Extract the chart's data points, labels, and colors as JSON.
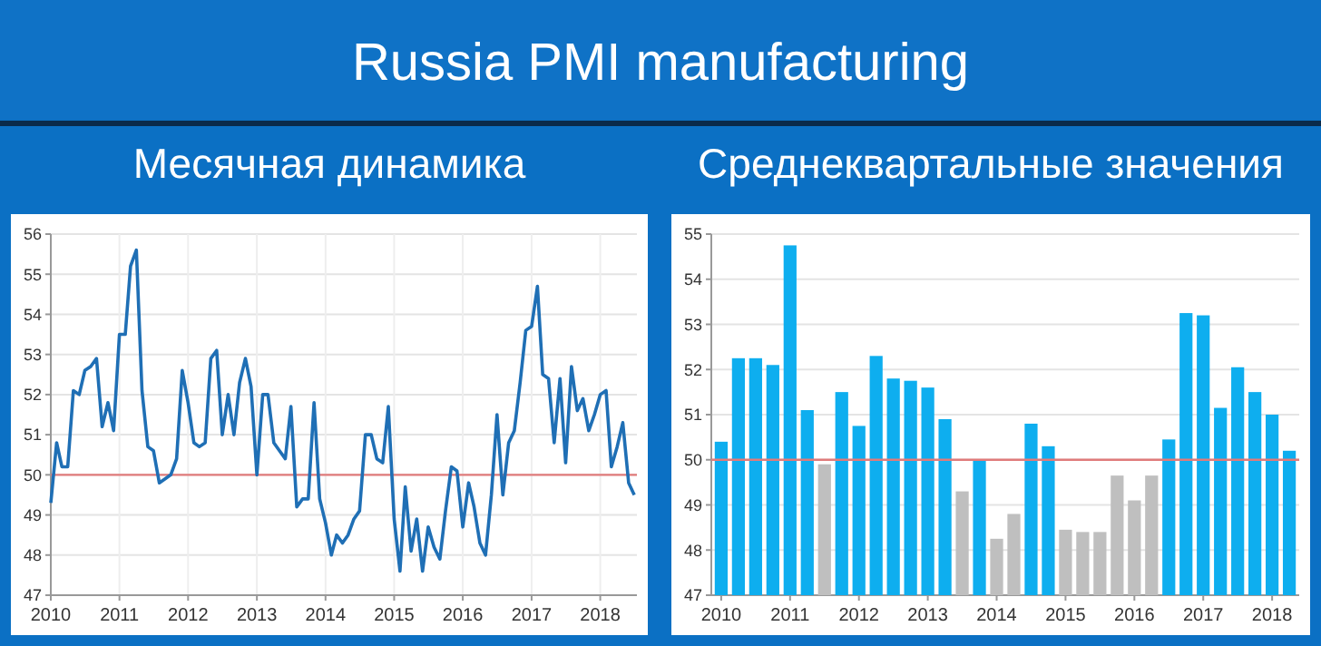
{
  "chart_data": [
    {
      "type": "line",
      "title": "Russia PMI manufacturing",
      "subtitle": "Месячная динамика",
      "x": [
        "2010-01",
        "2010-02",
        "2010-03",
        "2010-04",
        "2010-05",
        "2010-06",
        "2010-07",
        "2010-08",
        "2010-09",
        "2010-10",
        "2010-11",
        "2010-12",
        "2011-01",
        "2011-02",
        "2011-03",
        "2011-04",
        "2011-05",
        "2011-06",
        "2011-07",
        "2011-08",
        "2011-09",
        "2011-10",
        "2011-11",
        "2011-12",
        "2012-01",
        "2012-02",
        "2012-03",
        "2012-04",
        "2012-05",
        "2012-06",
        "2012-07",
        "2012-08",
        "2012-09",
        "2012-10",
        "2012-11",
        "2012-12",
        "2013-01",
        "2013-02",
        "2013-03",
        "2013-04",
        "2013-05",
        "2013-06",
        "2013-07",
        "2013-08",
        "2013-09",
        "2013-10",
        "2013-11",
        "2013-12",
        "2014-01",
        "2014-02",
        "2014-03",
        "2014-04",
        "2014-05",
        "2014-06",
        "2014-07",
        "2014-08",
        "2014-09",
        "2014-10",
        "2014-11",
        "2014-12",
        "2015-01",
        "2015-02",
        "2015-03",
        "2015-04",
        "2015-05",
        "2015-06",
        "2015-07",
        "2015-08",
        "2015-09",
        "2015-10",
        "2015-11",
        "2015-12",
        "2016-01",
        "2016-02",
        "2016-03",
        "2016-04",
        "2016-05",
        "2016-06",
        "2016-07",
        "2016-08",
        "2016-09",
        "2016-10",
        "2016-11",
        "2016-12",
        "2017-01",
        "2017-02",
        "2017-03",
        "2017-04",
        "2017-05",
        "2017-06",
        "2017-07",
        "2017-08",
        "2017-09",
        "2017-10",
        "2017-11",
        "2017-12",
        "2018-01",
        "2018-02",
        "2018-03",
        "2018-04",
        "2018-05",
        "2018-06",
        "2018-07"
      ],
      "series": [
        {
          "color": "#1f6fb5",
          "values": [
            49.3,
            50.8,
            50.2,
            50.2,
            52.1,
            52.0,
            52.6,
            52.7,
            52.9,
            51.2,
            51.8,
            51.1,
            53.5,
            53.5,
            55.2,
            55.6,
            52.1,
            50.7,
            50.6,
            49.8,
            49.9,
            50.0,
            50.4,
            52.6,
            51.8,
            50.8,
            50.7,
            50.8,
            52.9,
            53.1,
            51.0,
            52.0,
            51.0,
            52.3,
            52.9,
            52.2,
            50.0,
            52.0,
            52.0,
            50.8,
            50.6,
            50.4,
            51.7,
            49.2,
            49.4,
            49.4,
            51.8,
            49.4,
            48.8,
            48.0,
            48.5,
            48.3,
            48.5,
            48.9,
            49.1,
            51.0,
            51.0,
            50.4,
            50.3,
            51.7,
            48.9,
            47.6,
            49.7,
            48.1,
            48.9,
            47.6,
            48.7,
            48.2,
            47.9,
            49.1,
            50.2,
            50.1,
            48.7,
            49.8,
            49.2,
            48.3,
            48.0,
            49.5,
            51.5,
            49.5,
            50.8,
            51.1,
            52.3,
            53.6,
            53.7,
            54.7,
            52.5,
            52.4,
            50.8,
            52.4,
            50.3,
            52.7,
            51.6,
            51.9,
            51.1,
            51.5,
            52.0,
            52.1,
            50.2,
            50.7,
            51.3,
            49.8,
            49.5
          ]
        }
      ],
      "xlim": [
        "2010-01",
        "2018-07-15"
      ],
      "xticks": [
        "2010",
        "2011",
        "2012",
        "2013",
        "2014",
        "2015",
        "2016",
        "2017",
        "2018"
      ],
      "ylim": [
        47,
        56
      ],
      "yticks": [
        47,
        48,
        49,
        50,
        51,
        52,
        53,
        54,
        55,
        56
      ],
      "grid": true,
      "ref_lines": [
        {
          "axis": "y",
          "value": 50,
          "color": "#e07b7b"
        }
      ]
    },
    {
      "type": "bar",
      "subtitle": "Среднеквартальные значения",
      "categories": [
        "2010",
        null,
        null,
        null,
        "2011",
        null,
        null,
        null,
        "2012",
        null,
        null,
        null,
        "2013",
        null,
        null,
        null,
        "2014",
        null,
        null,
        null,
        "2015",
        null,
        null,
        null,
        "2016",
        null,
        null,
        null,
        "2017",
        null,
        null,
        null,
        "2018",
        null
      ],
      "values": [
        50.4,
        52.25,
        52.25,
        52.1,
        54.75,
        51.1,
        49.9,
        51.5,
        50.75,
        52.3,
        51.8,
        51.75,
        51.6,
        50.9,
        49.3,
        50.0,
        48.25,
        48.8,
        50.8,
        50.3,
        48.45,
        48.4,
        48.4,
        49.65,
        49.1,
        49.65,
        50.45,
        53.25,
        53.2,
        51.15,
        52.05,
        51.5,
        51.0,
        50.2
      ],
      "colors": [
        "#0eaeef",
        "#0eaeef",
        "#0eaeef",
        "#0eaeef",
        "#0eaeef",
        "#0eaeef",
        "#bfbfbf",
        "#0eaeef",
        "#0eaeef",
        "#0eaeef",
        "#0eaeef",
        "#0eaeef",
        "#0eaeef",
        "#0eaeef",
        "#bfbfbf",
        "#0eaeef",
        "#bfbfbf",
        "#bfbfbf",
        "#0eaeef",
        "#0eaeef",
        "#bfbfbf",
        "#bfbfbf",
        "#bfbfbf",
        "#bfbfbf",
        "#bfbfbf",
        "#bfbfbf",
        "#0eaeef",
        "#0eaeef",
        "#0eaeef",
        "#0eaeef",
        "#0eaeef",
        "#0eaeef",
        "#0eaeef",
        "#0eaeef"
      ],
      "ylim": [
        47,
        55
      ],
      "yticks": [
        47,
        48,
        49,
        50,
        51,
        52,
        53,
        54,
        55
      ],
      "grid": "y",
      "ref_lines": [
        {
          "axis": "y",
          "value": 50,
          "color": "#e07b7b"
        }
      ]
    }
  ]
}
